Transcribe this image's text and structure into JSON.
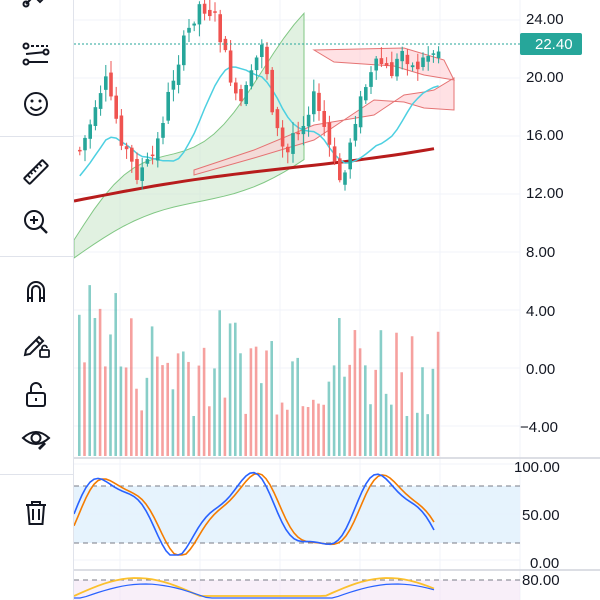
{
  "toolbar": {
    "tools": [
      {
        "name": "pattern-tool-icon"
      },
      {
        "name": "prediction-tool-icon"
      },
      {
        "name": "emoji-icon"
      },
      {
        "name": "ruler-icon"
      },
      {
        "name": "zoom-in-icon"
      },
      {
        "name": "magnet-icon"
      },
      {
        "name": "lock-drawing-icon"
      },
      {
        "name": "unlock-icon"
      },
      {
        "name": "eye-icon"
      },
      {
        "name": "trash-icon"
      }
    ]
  },
  "price_axis": {
    "ticks": [
      "24.00",
      "20.00",
      "16.00",
      "12.00",
      "8.00",
      "4.00",
      "0.00",
      "−4.00"
    ],
    "current_price": "22.40",
    "current_price_color": "#26a69a"
  },
  "stochastic_axis": {
    "ticks": [
      "100.00",
      "50.00",
      "0.00"
    ]
  },
  "rsi_axis": {
    "ticks": [
      "80.00"
    ]
  },
  "colors": {
    "up": "#26a69a",
    "down": "#ef5350",
    "ma_long": "#b71c1c",
    "ma_short": "#4dd0e1",
    "cloud_up": "#c8e6c9",
    "cloud_down": "#ffcdd2",
    "stoch_k": "#2962ff",
    "stoch_d": "#f57c00",
    "band_fill": "#e3f2fd"
  }
}
